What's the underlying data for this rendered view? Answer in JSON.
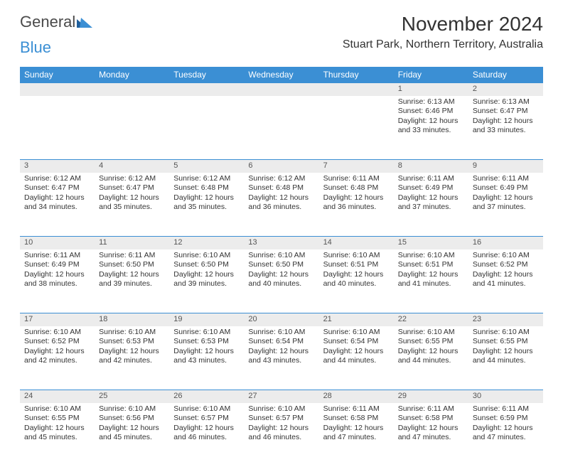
{
  "brand": {
    "part1": "General",
    "part2": "Blue"
  },
  "title": "November 2024",
  "location": "Stuart Park, Northern Territory, Australia",
  "colors": {
    "header_bg": "#3b8fd4",
    "header_text": "#ffffff",
    "daynum_bg": "#ececec",
    "text": "#333333",
    "brand_gray": "#4a4a4a",
    "brand_blue": "#3b8fd4"
  },
  "typography": {
    "title_fontsize": 28,
    "location_fontsize": 16,
    "header_fontsize": 12,
    "cell_fontsize": 10.5
  },
  "day_headers": [
    "Sunday",
    "Monday",
    "Tuesday",
    "Wednesday",
    "Thursday",
    "Friday",
    "Saturday"
  ],
  "weeks": [
    {
      "nums": [
        "",
        "",
        "",
        "",
        "",
        "1",
        "2"
      ],
      "cells": [
        {
          "sunrise": "",
          "sunset": "",
          "daylight": ""
        },
        {
          "sunrise": "",
          "sunset": "",
          "daylight": ""
        },
        {
          "sunrise": "",
          "sunset": "",
          "daylight": ""
        },
        {
          "sunrise": "",
          "sunset": "",
          "daylight": ""
        },
        {
          "sunrise": "",
          "sunset": "",
          "daylight": ""
        },
        {
          "sunrise": "Sunrise: 6:13 AM",
          "sunset": "Sunset: 6:46 PM",
          "daylight": "Daylight: 12 hours and 33 minutes."
        },
        {
          "sunrise": "Sunrise: 6:13 AM",
          "sunset": "Sunset: 6:47 PM",
          "daylight": "Daylight: 12 hours and 33 minutes."
        }
      ]
    },
    {
      "nums": [
        "3",
        "4",
        "5",
        "6",
        "7",
        "8",
        "9"
      ],
      "cells": [
        {
          "sunrise": "Sunrise: 6:12 AM",
          "sunset": "Sunset: 6:47 PM",
          "daylight": "Daylight: 12 hours and 34 minutes."
        },
        {
          "sunrise": "Sunrise: 6:12 AM",
          "sunset": "Sunset: 6:47 PM",
          "daylight": "Daylight: 12 hours and 35 minutes."
        },
        {
          "sunrise": "Sunrise: 6:12 AM",
          "sunset": "Sunset: 6:48 PM",
          "daylight": "Daylight: 12 hours and 35 minutes."
        },
        {
          "sunrise": "Sunrise: 6:12 AM",
          "sunset": "Sunset: 6:48 PM",
          "daylight": "Daylight: 12 hours and 36 minutes."
        },
        {
          "sunrise": "Sunrise: 6:11 AM",
          "sunset": "Sunset: 6:48 PM",
          "daylight": "Daylight: 12 hours and 36 minutes."
        },
        {
          "sunrise": "Sunrise: 6:11 AM",
          "sunset": "Sunset: 6:49 PM",
          "daylight": "Daylight: 12 hours and 37 minutes."
        },
        {
          "sunrise": "Sunrise: 6:11 AM",
          "sunset": "Sunset: 6:49 PM",
          "daylight": "Daylight: 12 hours and 37 minutes."
        }
      ]
    },
    {
      "nums": [
        "10",
        "11",
        "12",
        "13",
        "14",
        "15",
        "16"
      ],
      "cells": [
        {
          "sunrise": "Sunrise: 6:11 AM",
          "sunset": "Sunset: 6:49 PM",
          "daylight": "Daylight: 12 hours and 38 minutes."
        },
        {
          "sunrise": "Sunrise: 6:11 AM",
          "sunset": "Sunset: 6:50 PM",
          "daylight": "Daylight: 12 hours and 39 minutes."
        },
        {
          "sunrise": "Sunrise: 6:10 AM",
          "sunset": "Sunset: 6:50 PM",
          "daylight": "Daylight: 12 hours and 39 minutes."
        },
        {
          "sunrise": "Sunrise: 6:10 AM",
          "sunset": "Sunset: 6:50 PM",
          "daylight": "Daylight: 12 hours and 40 minutes."
        },
        {
          "sunrise": "Sunrise: 6:10 AM",
          "sunset": "Sunset: 6:51 PM",
          "daylight": "Daylight: 12 hours and 40 minutes."
        },
        {
          "sunrise": "Sunrise: 6:10 AM",
          "sunset": "Sunset: 6:51 PM",
          "daylight": "Daylight: 12 hours and 41 minutes."
        },
        {
          "sunrise": "Sunrise: 6:10 AM",
          "sunset": "Sunset: 6:52 PM",
          "daylight": "Daylight: 12 hours and 41 minutes."
        }
      ]
    },
    {
      "nums": [
        "17",
        "18",
        "19",
        "20",
        "21",
        "22",
        "23"
      ],
      "cells": [
        {
          "sunrise": "Sunrise: 6:10 AM",
          "sunset": "Sunset: 6:52 PM",
          "daylight": "Daylight: 12 hours and 42 minutes."
        },
        {
          "sunrise": "Sunrise: 6:10 AM",
          "sunset": "Sunset: 6:53 PM",
          "daylight": "Daylight: 12 hours and 42 minutes."
        },
        {
          "sunrise": "Sunrise: 6:10 AM",
          "sunset": "Sunset: 6:53 PM",
          "daylight": "Daylight: 12 hours and 43 minutes."
        },
        {
          "sunrise": "Sunrise: 6:10 AM",
          "sunset": "Sunset: 6:54 PM",
          "daylight": "Daylight: 12 hours and 43 minutes."
        },
        {
          "sunrise": "Sunrise: 6:10 AM",
          "sunset": "Sunset: 6:54 PM",
          "daylight": "Daylight: 12 hours and 44 minutes."
        },
        {
          "sunrise": "Sunrise: 6:10 AM",
          "sunset": "Sunset: 6:55 PM",
          "daylight": "Daylight: 12 hours and 44 minutes."
        },
        {
          "sunrise": "Sunrise: 6:10 AM",
          "sunset": "Sunset: 6:55 PM",
          "daylight": "Daylight: 12 hours and 44 minutes."
        }
      ]
    },
    {
      "nums": [
        "24",
        "25",
        "26",
        "27",
        "28",
        "29",
        "30"
      ],
      "cells": [
        {
          "sunrise": "Sunrise: 6:10 AM",
          "sunset": "Sunset: 6:55 PM",
          "daylight": "Daylight: 12 hours and 45 minutes."
        },
        {
          "sunrise": "Sunrise: 6:10 AM",
          "sunset": "Sunset: 6:56 PM",
          "daylight": "Daylight: 12 hours and 45 minutes."
        },
        {
          "sunrise": "Sunrise: 6:10 AM",
          "sunset": "Sunset: 6:57 PM",
          "daylight": "Daylight: 12 hours and 46 minutes."
        },
        {
          "sunrise": "Sunrise: 6:10 AM",
          "sunset": "Sunset: 6:57 PM",
          "daylight": "Daylight: 12 hours and 46 minutes."
        },
        {
          "sunrise": "Sunrise: 6:11 AM",
          "sunset": "Sunset: 6:58 PM",
          "daylight": "Daylight: 12 hours and 47 minutes."
        },
        {
          "sunrise": "Sunrise: 6:11 AM",
          "sunset": "Sunset: 6:58 PM",
          "daylight": "Daylight: 12 hours and 47 minutes."
        },
        {
          "sunrise": "Sunrise: 6:11 AM",
          "sunset": "Sunset: 6:59 PM",
          "daylight": "Daylight: 12 hours and 47 minutes."
        }
      ]
    }
  ]
}
